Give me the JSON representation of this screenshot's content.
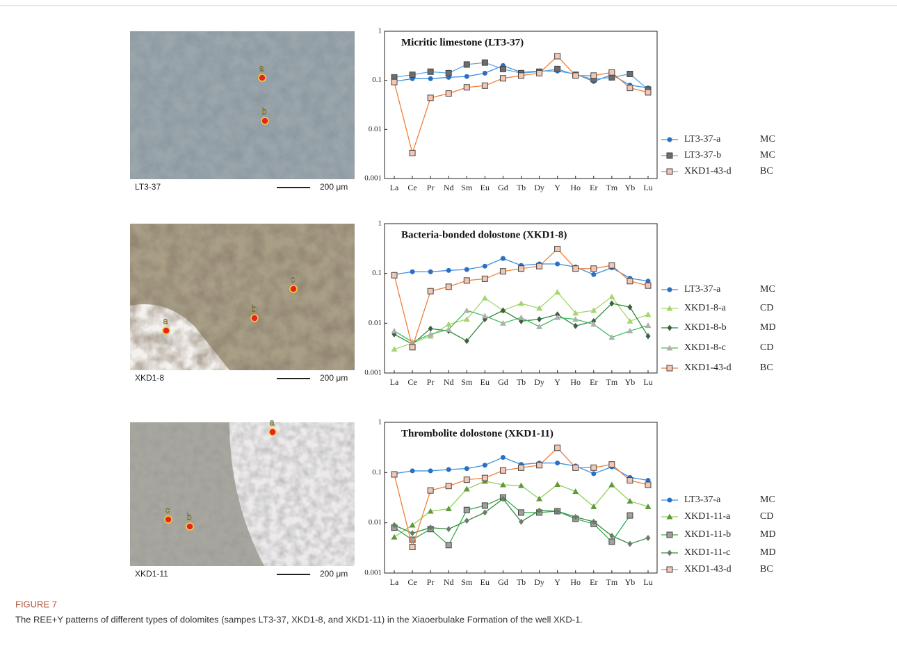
{
  "chart_data": [
    {
      "type": "line",
      "title": "Micritic limestone (LT3-37)",
      "log": true,
      "categories": [
        "La",
        "Ce",
        "Pr",
        "Nd",
        "Sm",
        "Eu",
        "Gd",
        "Tb",
        "Dy",
        "Y",
        "Ho",
        "Er",
        "Tm",
        "Yb",
        "Lu"
      ],
      "ylim": [
        0.001,
        1
      ],
      "yticks": [
        0.001,
        0.01,
        0.1,
        1
      ],
      "series": [
        {
          "name": "LT3-37-a",
          "group": "MC",
          "color": "#3b8fe0",
          "marker": "circle",
          "marker_color": "#2a6fc4",
          "values": [
            0.095,
            0.108,
            0.108,
            0.115,
            0.12,
            0.14,
            0.2,
            0.145,
            0.155,
            0.155,
            0.135,
            0.095,
            0.13,
            0.08,
            0.07
          ]
        },
        {
          "name": "LT3-37-b",
          "group": "MC",
          "color": "#5aa9e6",
          "marker": "square",
          "marker_color": "#6d6d6d",
          "values": [
            0.115,
            0.13,
            0.15,
            0.14,
            0.21,
            0.23,
            0.17,
            0.14,
            0.15,
            0.17,
            0.13,
            0.105,
            0.115,
            0.135,
            0.065
          ]
        },
        {
          "name": "XKD1-43-d",
          "group": "BC",
          "color": "#ee7f3a",
          "marker": "square",
          "marker_color": "#f4c6b3",
          "values": [
            0.092,
            0.0033,
            0.044,
            0.054,
            0.072,
            0.078,
            0.11,
            0.125,
            0.14,
            0.31,
            0.125,
            0.125,
            0.145,
            0.07,
            0.057
          ]
        }
      ]
    },
    {
      "type": "line",
      "title": "Bacteria-bonded dolostone (XKD1-8)",
      "log": true,
      "categories": [
        "La",
        "Ce",
        "Pr",
        "Nd",
        "Sm",
        "Eu",
        "Gd",
        "Tb",
        "Dy",
        "Y",
        "Ho",
        "Er",
        "Tm",
        "Yb",
        "Lu"
      ],
      "ylim": [
        0.001,
        1
      ],
      "yticks": [
        0.001,
        0.01,
        0.1,
        1
      ],
      "series": [
        {
          "name": "LT3-37-a",
          "group": "MC",
          "color": "#3b8fe0",
          "marker": "circle",
          "marker_color": "#2a6fc4",
          "values": [
            0.095,
            0.108,
            0.108,
            0.115,
            0.12,
            0.14,
            0.2,
            0.145,
            0.155,
            0.155,
            0.135,
            0.095,
            0.13,
            0.08,
            0.07
          ]
        },
        {
          "name": "XKD1-8-a",
          "group": "CD",
          "color": "#a3d66c",
          "marker": "triangle",
          "marker_color": "#a3d66c",
          "values": [
            0.003,
            0.004,
            0.0055,
            0.0095,
            0.012,
            0.032,
            0.018,
            0.025,
            0.02,
            0.042,
            0.016,
            0.018,
            0.034,
            0.011,
            0.015
          ]
        },
        {
          "name": "XKD1-8-b",
          "group": "MD",
          "color": "#2f8a3e",
          "marker": "diamond",
          "marker_color": "#3f5f44",
          "values": [
            0.006,
            0.0038,
            0.0078,
            0.007,
            0.0044,
            0.012,
            0.018,
            0.011,
            0.012,
            0.015,
            0.0088,
            0.011,
            0.025,
            0.021,
            0.0055
          ]
        },
        {
          "name": "XKD1-8-c",
          "group": "CD",
          "color": "#3cbf5a",
          "marker": "triangle",
          "marker_color": "#b0b0b0",
          "values": [
            0.007,
            0.0042,
            0.006,
            0.0075,
            0.018,
            0.014,
            0.01,
            0.013,
            0.0085,
            0.013,
            0.012,
            0.0095,
            0.0052,
            0.007,
            0.009
          ]
        },
        {
          "name": "XKD1-43-d",
          "group": "BC",
          "color": "#ee7f3a",
          "marker": "square",
          "marker_color": "#f4c6b3",
          "values": [
            0.092,
            0.0033,
            0.044,
            0.054,
            0.072,
            0.078,
            0.11,
            0.125,
            0.14,
            0.31,
            0.125,
            0.125,
            0.145,
            0.07,
            0.057
          ]
        }
      ]
    },
    {
      "type": "line",
      "title": "Thrombolite dolostone  (XKD1-11)",
      "log": true,
      "categories": [
        "La",
        "Ce",
        "Pr",
        "Nd",
        "Sm",
        "Eu",
        "Gd",
        "Tb",
        "Dy",
        "Y",
        "Ho",
        "Er",
        "Tm",
        "Yb",
        "Lu"
      ],
      "ylim": [
        0.001,
        1
      ],
      "yticks": [
        0.001,
        0.01,
        0.1,
        1
      ],
      "series": [
        {
          "name": "LT3-37-a",
          "group": "MC",
          "color": "#3b8fe0",
          "marker": "circle",
          "marker_color": "#2a6fc4",
          "values": [
            0.095,
            0.108,
            0.108,
            0.115,
            0.12,
            0.14,
            0.2,
            0.145,
            0.155,
            0.155,
            0.135,
            0.095,
            0.13,
            0.08,
            0.07
          ]
        },
        {
          "name": "XKD1-11-a",
          "group": "CD",
          "color": "#8fcf5a",
          "marker": "triangle",
          "marker_color": "#5f9a3a",
          "values": [
            0.0052,
            0.009,
            0.017,
            0.019,
            0.047,
            0.067,
            0.057,
            0.055,
            0.03,
            0.058,
            0.042,
            0.021,
            0.057,
            0.027,
            0.021
          ]
        },
        {
          "name": "XKD1-11-b",
          "group": "MD",
          "color": "#2fae4a",
          "marker": "square",
          "marker_color": "#a0a0a0",
          "values": [
            0.008,
            0.0046,
            0.0075,
            0.0036,
            0.018,
            0.022,
            0.032,
            0.016,
            0.016,
            0.017,
            0.012,
            0.0095,
            0.0042,
            0.014,
            null
          ]
        },
        {
          "name": "XKD1-11-c",
          "group": "MD",
          "color": "#2f8a3e",
          "marker": "diamond",
          "marker_color": "#6b7a6b",
          "values": [
            0.009,
            0.0062,
            0.008,
            0.0075,
            0.011,
            0.016,
            0.03,
            0.0105,
            0.0175,
            0.017,
            0.013,
            0.0105,
            0.0055,
            0.0038,
            0.005
          ]
        },
        {
          "name": "XKD1-43-d",
          "group": "BC",
          "color": "#ee7f3a",
          "marker": "square",
          "marker_color": "#f4c6b3",
          "values": [
            0.092,
            0.0033,
            0.044,
            0.054,
            0.072,
            0.078,
            0.11,
            0.125,
            0.14,
            0.31,
            0.125,
            0.125,
            0.145,
            0.07,
            0.057
          ]
        }
      ]
    }
  ],
  "panels": [
    {
      "label": "LT3-37",
      "scale": "200 μm",
      "points": [
        "a",
        "b"
      ]
    },
    {
      "label": "XKD1-8",
      "scale": "200 μm",
      "points": [
        "c",
        "a",
        "b"
      ]
    },
    {
      "label": "XKD1-11",
      "scale": "200 μm",
      "points": [
        "a",
        "c",
        "b"
      ]
    }
  ],
  "caption": {
    "label": "FIGURE 7",
    "text": "The REE+Y patterns of different types of dolomites (sampes LT3-37, XKD1-8, and XKD1-11) in the Xiaoerbulake Formation of the well XKD-1."
  }
}
